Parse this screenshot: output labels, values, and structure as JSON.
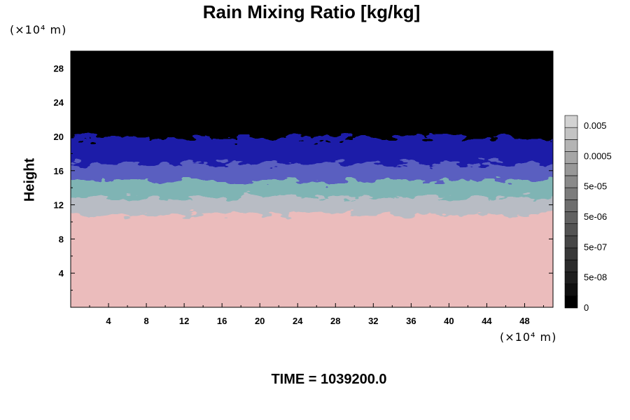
{
  "chart_data": {
    "type": "heatmap",
    "title": "Rain Mixing Ratio [kg/kg]",
    "ylabel": "Height",
    "x_unit": "(×10⁴ m)",
    "y_unit": "(×10⁴ m)",
    "xlim": [
      0,
      51
    ],
    "ylim": [
      0,
      30
    ],
    "x_ticks": [
      "4",
      "8",
      "12",
      "16",
      "20",
      "24",
      "28",
      "32",
      "36",
      "40",
      "44",
      "48"
    ],
    "y_ticks": [
      "4",
      "8",
      "12",
      "16",
      "20",
      "24",
      "28"
    ],
    "colorbar": {
      "labels": [
        "0.005",
        "0.0005",
        "5e-05",
        "5e-06",
        "5e-07",
        "5e-08",
        "0"
      ],
      "colors": [
        "#000000",
        "#101010",
        "#1e1e1e",
        "#2b2b2b",
        "#383838",
        "#464646",
        "#535353",
        "#616161",
        "#6e6e6e",
        "#7c7c7c",
        "#8a8a8a",
        "#989898",
        "#a6a6a6",
        "#b4b4b4",
        "#c3c3c3",
        "#d2d2d2"
      ]
    },
    "layers": [
      {
        "from_height": 0,
        "to_height": 11,
        "color": "#ebbcbc"
      },
      {
        "from_height": 11,
        "to_height": 13,
        "color": "#b8bcc4"
      },
      {
        "from_height": 13,
        "to_height": 15,
        "color": "#7fb4b4"
      },
      {
        "from_height": 15,
        "to_height": 17,
        "color": "#5a5ec0"
      },
      {
        "from_height": 17,
        "to_height": 20,
        "color": "#1a1aa8"
      },
      {
        "from_height": 20,
        "to_height": 30,
        "color": "#000000"
      }
    ]
  },
  "time_text": "TIME = 1039200.0"
}
